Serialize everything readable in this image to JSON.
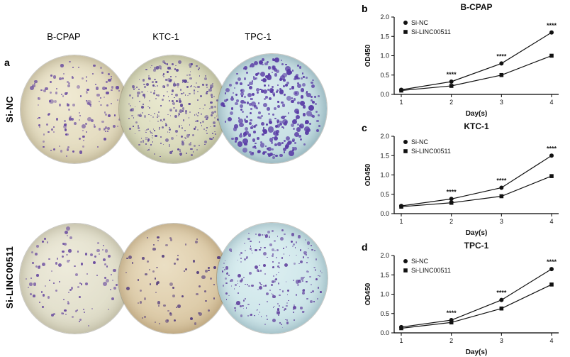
{
  "figure": {
    "background": "#ffffff",
    "panel_a": {
      "label": "a",
      "column_headers": [
        "B-CPAP",
        "KTC-1",
        "TPC-1"
      ],
      "row_labels": [
        "Si-NC",
        "Si-LINC00511"
      ],
      "dishes": [
        {
          "row": "Si-NC",
          "cell_line": "B-CPAP",
          "bg_center": "#f0ead3",
          "bg_edge": "#dcd3b4",
          "rim": "rgba(120,105,70,0.5)",
          "dot_color": "#6a4ca0",
          "dots": 150,
          "dot_min": 2,
          "dot_max": 7,
          "min_opacity": 0.45,
          "seed": 11
        },
        {
          "row": "Si-NC",
          "cell_line": "KTC-1",
          "bg_center": "#eae9d0",
          "bg_edge": "#ced0ae",
          "rim": "rgba(110,110,75,0.5)",
          "dot_color": "#5e4898",
          "dots": 340,
          "dot_min": 1.5,
          "dot_max": 5.5,
          "min_opacity": 0.45,
          "seed": 22
        },
        {
          "row": "Si-NC",
          "cell_line": "TPC-1",
          "bg_center": "#dbecef",
          "bg_edge": "#b7d5db",
          "rim": "rgba(60,100,115,0.5)",
          "dot_color": "#5a3da6",
          "dots": 330,
          "dot_min": 2.5,
          "dot_max": 9,
          "min_opacity": 0.6,
          "seed": 33
        },
        {
          "row": "Si-LINC00511",
          "cell_line": "B-CPAP",
          "bg_center": "#eeebdb",
          "bg_edge": "#d8d6c0",
          "rim": "rgba(120,110,80,0.45)",
          "dot_color": "#6a4ca0",
          "dots": 105,
          "dot_min": 2,
          "dot_max": 6.5,
          "min_opacity": 0.5,
          "seed": 44
        },
        {
          "row": "Si-LINC00511",
          "cell_line": "KTC-1",
          "bg_center": "#ebdfc4",
          "bg_edge": "#d3bd95",
          "rim": "rgba(130,100,55,0.5)",
          "dot_color": "#5a4380",
          "dots": 80,
          "dot_min": 2,
          "dot_max": 6.5,
          "min_opacity": 0.5,
          "seed": 55
        },
        {
          "row": "Si-LINC00511",
          "cell_line": "TPC-1",
          "bg_center": "#def0f2",
          "bg_edge": "#c2dee3",
          "rim": "rgba(60,100,115,0.45)",
          "dot_color": "#6546a0",
          "dots": 250,
          "dot_min": 1.5,
          "dot_max": 6,
          "min_opacity": 0.45,
          "seed": 66
        }
      ]
    }
  },
  "chart_data": [
    {
      "panel": "b",
      "type": "line",
      "title": "B-CPAP",
      "xlabel": "Day(s)",
      "ylabel": "OD450",
      "x": [
        1,
        2,
        3,
        4
      ],
      "ylim": [
        0,
        2
      ],
      "yticks": [
        "0.0",
        "0.5",
        "1.0",
        "1.5",
        "2.0"
      ],
      "legend_position": "top-left",
      "line_color": "#111111",
      "series": [
        {
          "name": "Si-NC",
          "marker": "circle",
          "values": [
            0.12,
            0.33,
            0.8,
            1.6
          ]
        },
        {
          "name": "Si-LINC00511",
          "marker": "square",
          "values": [
            0.1,
            0.22,
            0.5,
            1.0
          ]
        }
      ],
      "annotations": [
        {
          "x": 2,
          "text": "****"
        },
        {
          "x": 3,
          "text": "****"
        },
        {
          "x": 4,
          "text": "****"
        }
      ]
    },
    {
      "panel": "c",
      "type": "line",
      "title": "KTC-1",
      "xlabel": "Day(s)",
      "ylabel": "OD450",
      "x": [
        1,
        2,
        3,
        4
      ],
      "ylim": [
        0,
        2
      ],
      "yticks": [
        "0.0",
        "0.5",
        "1.0",
        "1.5",
        "2.0"
      ],
      "legend_position": "top-left",
      "line_color": "#111111",
      "series": [
        {
          "name": "Si-NC",
          "marker": "circle",
          "values": [
            0.2,
            0.38,
            0.67,
            1.5
          ]
        },
        {
          "name": "Si-LINC00511",
          "marker": "square",
          "values": [
            0.18,
            0.28,
            0.45,
            0.97
          ]
        }
      ],
      "annotations": [
        {
          "x": 2,
          "text": "****"
        },
        {
          "x": 3,
          "text": "****"
        },
        {
          "x": 4,
          "text": "****"
        }
      ]
    },
    {
      "panel": "d",
      "type": "line",
      "title": "TPC-1",
      "xlabel": "Day(s)",
      "ylabel": "OD450",
      "x": [
        1,
        2,
        3,
        4
      ],
      "ylim": [
        0,
        2
      ],
      "yticks": [
        "0.0",
        "0.5",
        "1.0",
        "1.5",
        "2.0"
      ],
      "legend_position": "top-left",
      "line_color": "#111111",
      "series": [
        {
          "name": "Si-NC",
          "marker": "circle",
          "values": [
            0.15,
            0.33,
            0.85,
            1.65
          ]
        },
        {
          "name": "Si-LINC00511",
          "marker": "square",
          "values": [
            0.12,
            0.27,
            0.63,
            1.25
          ]
        }
      ],
      "annotations": [
        {
          "x": 2,
          "text": "****"
        },
        {
          "x": 3,
          "text": "****"
        },
        {
          "x": 4,
          "text": "****"
        }
      ]
    }
  ]
}
